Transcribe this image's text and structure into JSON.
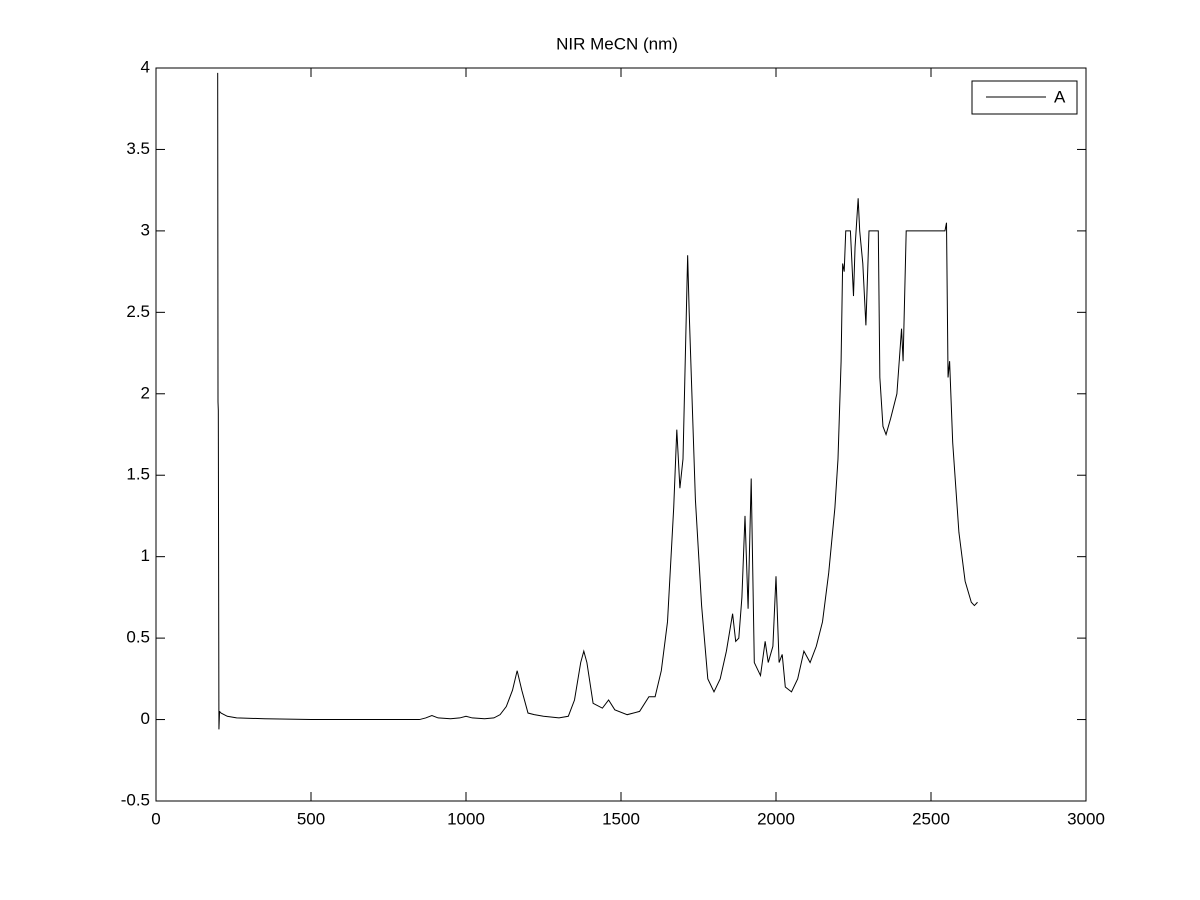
{
  "chart_data": {
    "type": "line",
    "title": "NIR MeCN (nm)",
    "x": [
      199,
      200,
      201,
      203,
      205,
      210,
      230,
      260,
      350,
      500,
      850,
      870,
      890,
      910,
      950,
      980,
      1000,
      1020,
      1060,
      1090,
      1110,
      1130,
      1150,
      1165,
      1180,
      1200,
      1220,
      1250,
      1300,
      1330,
      1350,
      1370,
      1380,
      1390,
      1410,
      1440,
      1460,
      1480,
      1520,
      1560,
      1590,
      1610,
      1630,
      1650,
      1670,
      1680,
      1690,
      1700,
      1715,
      1720,
      1740,
      1760,
      1780,
      1800,
      1820,
      1840,
      1860,
      1870,
      1880,
      1890,
      1900,
      1910,
      1920,
      1930,
      1950,
      1965,
      1975,
      1990,
      2000,
      2010,
      2020,
      2030,
      2050,
      2070,
      2090,
      2110,
      2130,
      2150,
      2170,
      2190,
      2200,
      2210,
      2215,
      2220,
      2225,
      2240,
      2250,
      2255,
      2265,
      2270,
      2280,
      2290,
      2300,
      2330,
      2335,
      2345,
      2355,
      2370,
      2390,
      2405,
      2410,
      2420,
      2545,
      2550,
      2555,
      2560,
      2570,
      2590,
      2600,
      2610,
      2630,
      2640,
      2650
    ],
    "series": [
      {
        "name": "A",
        "color": "#000000",
        "values": [
          3.97,
          1.95,
          1.9,
          -0.06,
          0.05,
          0.04,
          0.02,
          0.01,
          0.005,
          0,
          0,
          0.01,
          0.025,
          0.01,
          0.005,
          0.01,
          0.02,
          0.01,
          0.005,
          0.01,
          0.03,
          0.08,
          0.18,
          0.3,
          0.18,
          0.04,
          0.03,
          0.02,
          0.01,
          0.02,
          0.12,
          0.35,
          0.42,
          0.35,
          0.1,
          0.07,
          0.12,
          0.06,
          0.03,
          0.05,
          0.14,
          0.14,
          0.3,
          0.6,
          1.3,
          1.78,
          1.42,
          1.6,
          2.85,
          2.5,
          1.35,
          0.7,
          0.25,
          0.17,
          0.25,
          0.42,
          0.65,
          0.48,
          0.5,
          0.75,
          1.25,
          0.68,
          1.48,
          0.35,
          0.27,
          0.48,
          0.35,
          0.45,
          0.88,
          0.35,
          0.4,
          0.2,
          0.17,
          0.25,
          0.42,
          0.35,
          0.45,
          0.6,
          0.9,
          1.3,
          1.6,
          2.2,
          2.8,
          2.75,
          3,
          3,
          2.6,
          2.9,
          3.2,
          3,
          2.8,
          2.42,
          3,
          3,
          2.1,
          1.8,
          1.75,
          1.85,
          2,
          2.4,
          2.2,
          3,
          3,
          3.05,
          2.1,
          2.2,
          1.7,
          1.15,
          1,
          0.85,
          0.72,
          0.7,
          0.72
        ]
      }
    ],
    "xlim": [
      0,
      3000
    ],
    "xticks": [
      0,
      500,
      1000,
      1500,
      2000,
      2500,
      3000
    ],
    "ylim": [
      -0.5,
      4
    ],
    "yticks": [
      -0.5,
      0,
      0.5,
      1,
      1.5,
      2,
      2.5,
      3,
      3.5,
      4
    ],
    "grid": false,
    "legend": "northeast"
  }
}
